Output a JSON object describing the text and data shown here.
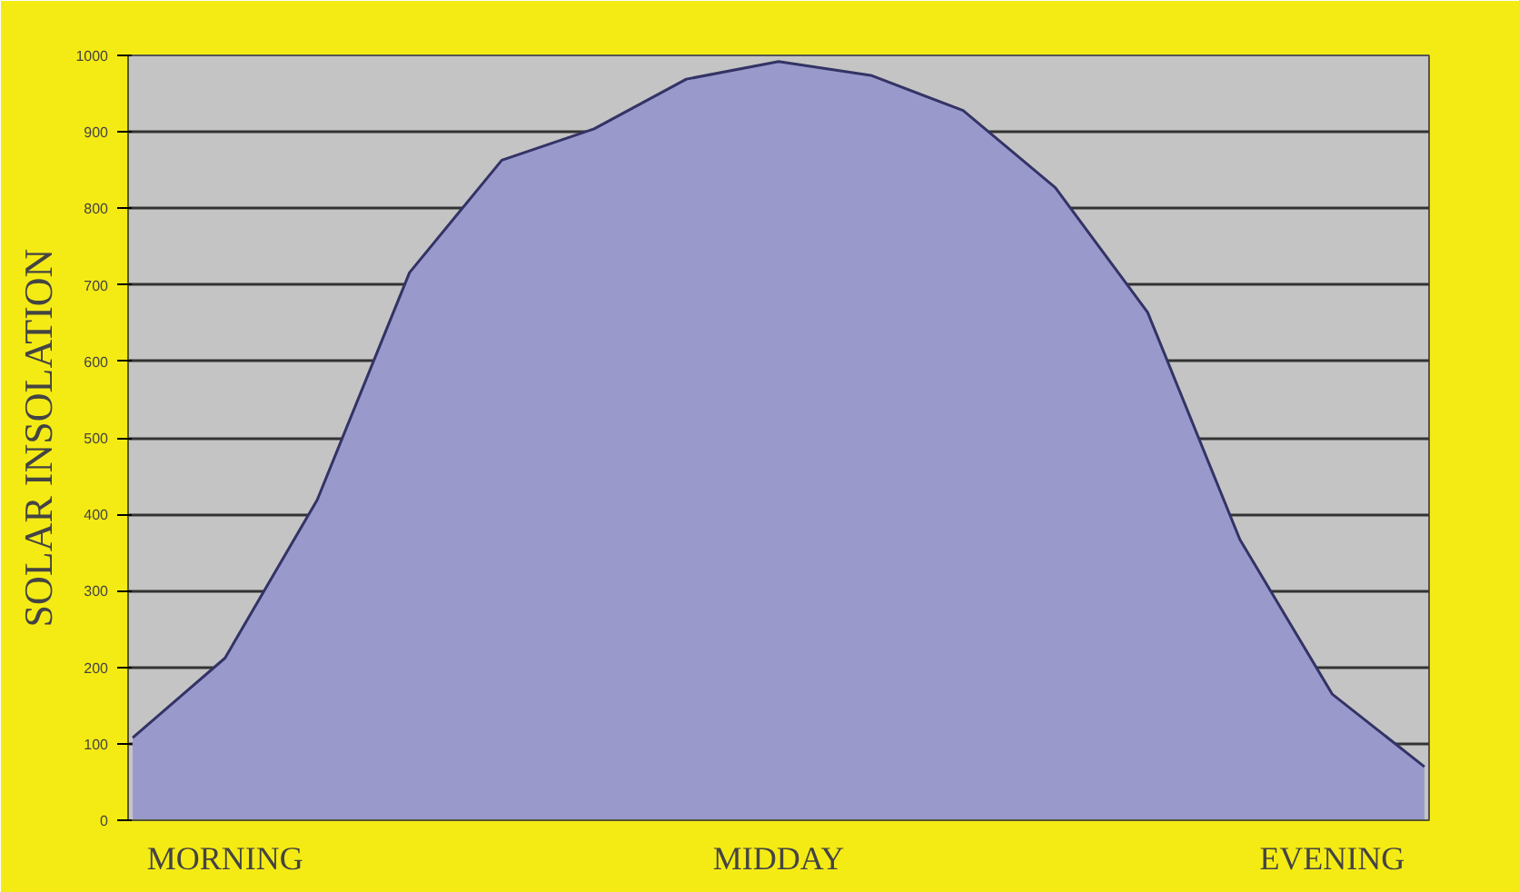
{
  "chart_data": {
    "type": "area",
    "ylabel": "SOLAR INSOLATION",
    "categories": [
      null,
      "MORNING",
      null,
      null,
      null,
      null,
      null,
      "MIDDAY",
      null,
      null,
      null,
      null,
      null,
      "EVENING",
      null
    ],
    "series": [
      {
        "color": "#9999cc",
        "values": [
          108,
          212,
          419,
          716,
          863,
          904,
          969,
          992,
          974,
          928,
          827,
          664,
          367,
          165,
          70
        ]
      }
    ],
    "ylim": [
      0,
      1000
    ],
    "yticks": [
      0,
      100,
      200,
      300,
      400,
      500,
      600,
      700,
      800,
      900,
      1000
    ],
    "grid": "y"
  }
}
